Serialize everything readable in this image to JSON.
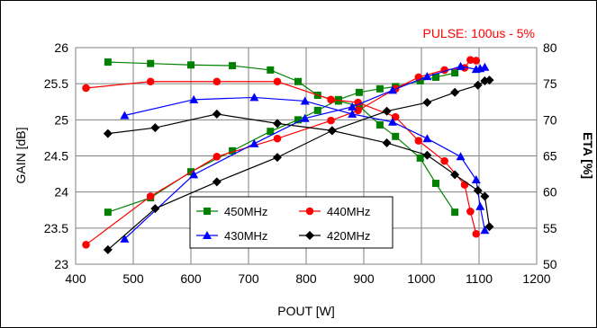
{
  "chart_data": {
    "type": "line",
    "annotation": "PULSE: 100us - 5%",
    "xlabel": "POUT [W]",
    "ylabel_left": "GAIN [dB]",
    "ylabel_right": "ETA [%]",
    "xlim": [
      400,
      1200
    ],
    "ylim_left": [
      23,
      26
    ],
    "ylim_right": [
      50,
      80
    ],
    "x_ticks": [
      "400",
      "500",
      "600",
      "700",
      "800",
      "900",
      "1000",
      "1100",
      "1200"
    ],
    "y_left_ticks": [
      "23",
      "23.5",
      "24",
      "24.5",
      "25",
      "25.5",
      "26"
    ],
    "y_right_ticks": [
      "50",
      "55",
      "60",
      "65",
      "70",
      "75",
      "80"
    ],
    "grid": true,
    "legend_position": "bottom-center",
    "series": [
      {
        "name": "450MHz",
        "color": "#008000",
        "marker": "square",
        "gain": [
          [
            456,
            25.8
          ],
          [
            530,
            25.78
          ],
          [
            600,
            25.76
          ],
          [
            672,
            25.75
          ],
          [
            738,
            25.69
          ],
          [
            786,
            25.53
          ],
          [
            820,
            25.34
          ],
          [
            856,
            25.26
          ],
          [
            892,
            25.19
          ],
          [
            928,
            24.93
          ],
          [
            955,
            24.77
          ],
          [
            998,
            24.47
          ],
          [
            1025,
            24.12
          ],
          [
            1058,
            23.72
          ]
        ],
        "eta": [
          [
            456,
            57.2
          ],
          [
            530,
            59.2
          ],
          [
            600,
            62.8
          ],
          [
            672,
            65.7
          ],
          [
            738,
            68.4
          ],
          [
            786,
            70.0
          ],
          [
            820,
            71.3
          ],
          [
            856,
            72.8
          ],
          [
            892,
            73.8
          ],
          [
            928,
            74.3
          ],
          [
            955,
            74.6
          ],
          [
            998,
            75.4
          ],
          [
            1025,
            75.9
          ],
          [
            1058,
            76.5
          ]
        ]
      },
      {
        "name": "440MHz",
        "color": "#ff0000",
        "marker": "circle",
        "gain": [
          [
            418,
            25.44
          ],
          [
            530,
            25.53
          ],
          [
            645,
            25.53
          ],
          [
            750,
            25.53
          ],
          [
            843,
            25.28
          ],
          [
            890,
            25.24
          ],
          [
            955,
            25.04
          ],
          [
            995,
            24.71
          ],
          [
            1040,
            24.43
          ],
          [
            1075,
            24.1
          ],
          [
            1085,
            23.73
          ],
          [
            1095,
            23.42
          ]
        ],
        "eta": [
          [
            418,
            52.7
          ],
          [
            530,
            59.4
          ],
          [
            645,
            64.9
          ],
          [
            750,
            67.4
          ],
          [
            843,
            69.9
          ],
          [
            890,
            71.3
          ],
          [
            955,
            74.3
          ],
          [
            995,
            75.9
          ],
          [
            1040,
            76.9
          ],
          [
            1075,
            77.2
          ],
          [
            1085,
            78.3
          ],
          [
            1095,
            78.2
          ]
        ]
      },
      {
        "name": "430MHz",
        "color": "#0000ff",
        "marker": "triangle",
        "gain": [
          [
            485,
            25.06
          ],
          [
            605,
            25.28
          ],
          [
            710,
            25.31
          ],
          [
            798,
            25.26
          ],
          [
            880,
            25.08
          ],
          [
            950,
            24.97
          ],
          [
            1010,
            24.74
          ],
          [
            1068,
            24.49
          ],
          [
            1095,
            24.17
          ],
          [
            1102,
            23.8
          ],
          [
            1110,
            23.47
          ]
        ],
        "eta": [
          [
            485,
            53.5
          ],
          [
            605,
            62.4
          ],
          [
            710,
            66.7
          ],
          [
            798,
            70.2
          ],
          [
            880,
            71.8
          ],
          [
            950,
            74.1
          ],
          [
            1010,
            76.0
          ],
          [
            1068,
            77.4
          ],
          [
            1095,
            77.0
          ],
          [
            1102,
            77.1
          ],
          [
            1110,
            77.3
          ]
        ]
      },
      {
        "name": "420MHz",
        "color": "#000000",
        "marker": "diamond",
        "gain": [
          [
            456,
            24.81
          ],
          [
            538,
            24.89
          ],
          [
            645,
            25.08
          ],
          [
            750,
            24.95
          ],
          [
            845,
            24.85
          ],
          [
            940,
            24.68
          ],
          [
            1010,
            24.51
          ],
          [
            1058,
            24.24
          ],
          [
            1098,
            24.02
          ],
          [
            1110,
            23.94
          ],
          [
            1118,
            23.52
          ]
        ],
        "eta": [
          [
            456,
            52.0
          ],
          [
            538,
            57.7
          ],
          [
            645,
            61.4
          ],
          [
            750,
            64.8
          ],
          [
            845,
            68.5
          ],
          [
            940,
            71.2
          ],
          [
            1010,
            72.4
          ],
          [
            1058,
            73.8
          ],
          [
            1098,
            74.8
          ],
          [
            1110,
            75.4
          ],
          [
            1118,
            75.5
          ]
        ]
      }
    ]
  }
}
